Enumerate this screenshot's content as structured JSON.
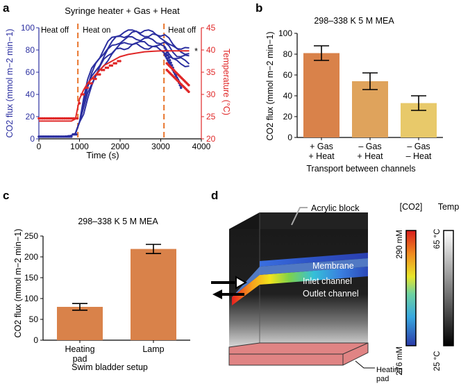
{
  "panels": {
    "a": {
      "letter": "a"
    },
    "b": {
      "letter": "b"
    },
    "c": {
      "letter": "c"
    },
    "d": {
      "letter": "d"
    }
  },
  "colors": {
    "blue": "#2b2fa0",
    "red": "#e02727",
    "orange_dash": "#e8742b",
    "bar1": "#d9824a",
    "bar2": "#dfa35c",
    "bar3": "#e8c96a",
    "bar_c": "#d9824a"
  },
  "chart_data": [
    {
      "id": "a",
      "type": "line",
      "title": "Syringe heater + Gas + Heat",
      "xlabel": "Time  (s)",
      "ylabel": "CO2 flux (mmol m−2 min−1)",
      "y2label": "Temperature (°C)",
      "xlim": [
        0,
        4000
      ],
      "ylim": [
        0,
        100
      ],
      "y2lim": [
        20,
        45
      ],
      "xticks": [
        0,
        1000,
        2000,
        3000,
        4000
      ],
      "yticks": [
        0,
        20,
        40,
        60,
        80,
        100
      ],
      "y2ticks": [
        20,
        25,
        30,
        35,
        40,
        45
      ],
      "annotations": [
        "Heat off",
        "Heat on",
        "Heat off",
        "*"
      ],
      "heat_switch_times": [
        960,
        3080
      ],
      "series": [
        {
          "name": "CO2 flux",
          "axis": "left",
          "x": [
            0,
            200,
            400,
            600,
            800,
            900,
            1000,
            1100,
            1200,
            1300,
            1400,
            1500,
            1600,
            1700,
            1800,
            1900,
            2000,
            2100,
            2200,
            2300,
            2400,
            2500,
            2600,
            2700,
            2800,
            2900,
            3000,
            3100,
            3200,
            3300,
            3400,
            3500,
            3600,
            3700
          ],
          "values": [
            2,
            2,
            2,
            2,
            3,
            5,
            15,
            30,
            45,
            55,
            62,
            68,
            74,
            79,
            83,
            86,
            88,
            89,
            90,
            91,
            91,
            90,
            90,
            89,
            89,
            88,
            87,
            86,
            82,
            78,
            76,
            75,
            74,
            73
          ]
        },
        {
          "name": "Temperature",
          "axis": "right",
          "x": [
            0,
            200,
            400,
            600,
            800,
            900,
            1000,
            1100,
            1200,
            1300,
            1400,
            1500,
            1600,
            1700,
            1800,
            1900,
            2000,
            2200,
            2400,
            2600,
            2800,
            3000,
            3200,
            3400,
            3600,
            3700
          ],
          "values": [
            24,
            24,
            24,
            24,
            24,
            24.5,
            29,
            31,
            32.5,
            33.5,
            34.5,
            35.5,
            36.5,
            37,
            37.5,
            38,
            38.5,
            39,
            39.3,
            39.6,
            39.7,
            39.8,
            39.8,
            39.8,
            39.8,
            39.8
          ]
        }
      ]
    },
    {
      "id": "b",
      "type": "bar",
      "title": "298–338 K 5 M MEA",
      "ylabel": "CO2 flux (mmol m−2 min−1)",
      "xlabel": "Transport between channels",
      "ylim": [
        0,
        100
      ],
      "yticks": [
        0,
        20,
        40,
        60,
        80,
        100
      ],
      "categories": [
        [
          "+ Gas",
          "+ Heat"
        ],
        [
          "– Gas",
          "+ Heat"
        ],
        [
          "– Gas",
          "– Heat"
        ]
      ],
      "values": [
        81,
        54,
        33
      ],
      "errors": [
        7,
        8,
        7
      ]
    },
    {
      "id": "c",
      "type": "bar",
      "title": "298–338 K 5 M MEA",
      "ylabel": "CO2 flux (mmol m−2 min−1)",
      "xlabel": "Swim bladder setup",
      "ylim": [
        0,
        250
      ],
      "yticks": [
        0,
        50,
        100,
        150,
        200,
        250
      ],
      "categories": [
        [
          "Heating",
          "pad"
        ],
        [
          "Lamp"
        ]
      ],
      "values": [
        80,
        219
      ],
      "errors": [
        8,
        11
      ]
    }
  ],
  "diagram_d": {
    "labels": {
      "acrylic": "Acrylic block",
      "membrane": "Membrane",
      "inlet": "Inlet channel",
      "outlet": "Outlet channel",
      "heating": "Heating",
      "heating2": "pad"
    },
    "colorbar_co2": {
      "title": "[CO2]",
      "top": "290 mM",
      "bottom": "276 mM"
    },
    "colorbar_temp": {
      "title": "Temp",
      "top": "65 °C",
      "bottom": "25 °C"
    }
  }
}
